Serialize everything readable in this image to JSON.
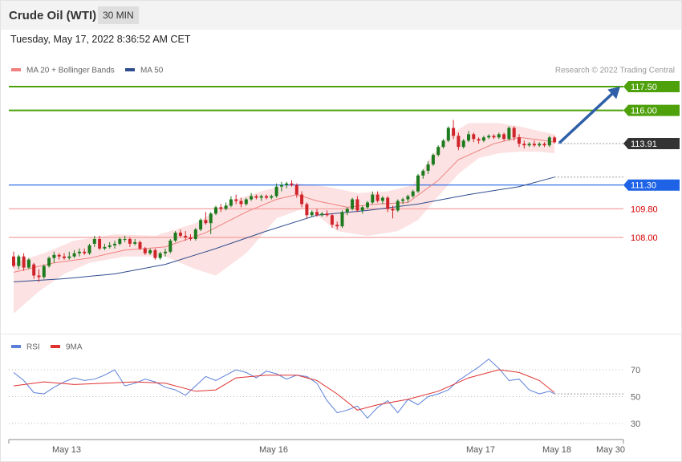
{
  "header": {
    "title": "Crude Oil (WTI)",
    "interval": "30 MIN"
  },
  "datetime": "Tuesday, May 17, 2022 8:36:52 AM CET",
  "legend": {
    "ma20_label": "MA 20 + Bollinger Bands",
    "ma50_label": "MA 50",
    "credit": "Research © 2022 Trading Central",
    "rsi_label": "RSI",
    "rsi_ma_label": "9MA"
  },
  "colors": {
    "up_candle": "#1e7a1e",
    "down_candle": "#d0242b",
    "bollinger_fill": "#fbd5d5",
    "ma20": "#f08080",
    "ma50": "#2f4d8e",
    "resistance": "#4ea10a",
    "pivot": "#1e63e6",
    "support": "#f4a0a0",
    "support_text": "#d40000",
    "current": "#333333",
    "arrow": "#2e5fa8",
    "rsi": "#5b7fd8",
    "rsi_ma": "#e03030"
  },
  "chart_data": [
    {
      "type": "candlestick",
      "title": "Crude Oil (WTI)",
      "interval": "30 MIN",
      "y_axis_labels": [
        {
          "value": 117.5,
          "label": "117.50",
          "kind": "resistance"
        },
        {
          "value": 116.0,
          "label": "116.00",
          "kind": "resistance"
        },
        {
          "value": 113.91,
          "label": "113.91",
          "kind": "current"
        },
        {
          "value": 111.3,
          "label": "111.30",
          "kind": "pivot"
        },
        {
          "value": 109.8,
          "label": "109.80",
          "kind": "support"
        },
        {
          "value": 108.0,
          "label": "108.00",
          "kind": "support"
        }
      ],
      "x_tick_labels": [
        "May 13",
        "May 16",
        "May 17",
        "May 18",
        "May 30"
      ],
      "ylim": [
        101.4,
        118.6
      ],
      "candles": [
        [
          106.8,
          107.1,
          106.1,
          106.2
        ],
        [
          106.2,
          106.9,
          106.0,
          106.8
        ],
        [
          106.8,
          107.0,
          105.9,
          106.1
        ],
        [
          106.1,
          106.7,
          106.0,
          106.6
        ],
        [
          106.3,
          106.4,
          105.4,
          105.6
        ],
        [
          105.6,
          106.0,
          105.2,
          105.5
        ],
        [
          105.5,
          106.3,
          105.4,
          106.2
        ],
        [
          106.2,
          106.8,
          106.1,
          106.7
        ],
        [
          106.7,
          107.1,
          106.4,
          106.9
        ],
        [
          106.9,
          107.0,
          106.6,
          106.8
        ],
        [
          106.8,
          107.0,
          106.6,
          106.7
        ],
        [
          106.7,
          107.1,
          106.6,
          106.8
        ],
        [
          106.8,
          107.2,
          106.7,
          107.0
        ],
        [
          107.0,
          107.3,
          106.8,
          107.1
        ],
        [
          107.1,
          107.3,
          106.9,
          107.0
        ],
        [
          107.0,
          107.6,
          106.9,
          107.5
        ],
        [
          107.6,
          108.1,
          107.4,
          107.9
        ],
        [
          107.9,
          108.1,
          107.2,
          107.3
        ],
        [
          107.3,
          107.6,
          107.2,
          107.4
        ],
        [
          107.4,
          107.7,
          107.3,
          107.5
        ],
        [
          107.5,
          107.8,
          107.3,
          107.6
        ],
        [
          107.6,
          108.0,
          107.5,
          107.9
        ],
        [
          107.9,
          108.1,
          107.7,
          107.9
        ],
        [
          107.9,
          108.0,
          107.4,
          107.6
        ],
        [
          107.6,
          107.9,
          107.5,
          107.7
        ],
        [
          107.7,
          107.8,
          107.2,
          107.3
        ],
        [
          107.3,
          107.4,
          106.9,
          107.0
        ],
        [
          107.0,
          107.3,
          106.9,
          107.2
        ],
        [
          107.2,
          107.3,
          106.6,
          106.7
        ],
        [
          106.7,
          107.1,
          106.6,
          107.0
        ],
        [
          107.0,
          107.3,
          106.8,
          107.1
        ],
        [
          107.1,
          107.9,
          107.0,
          107.8
        ],
        [
          107.8,
          108.4,
          107.7,
          108.3
        ],
        [
          108.3,
          108.5,
          108.0,
          108.1
        ],
        [
          108.1,
          108.4,
          107.8,
          108.0
        ],
        [
          108.0,
          108.2,
          107.8,
          107.9
        ],
        [
          107.9,
          108.6,
          107.8,
          108.5
        ],
        [
          108.5,
          109.2,
          108.4,
          109.1
        ],
        [
          109.1,
          109.6,
          108.8,
          108.9
        ],
        [
          108.9,
          109.6,
          108.2,
          109.5
        ],
        [
          109.5,
          110.0,
          109.4,
          109.9
        ],
        [
          109.9,
          110.1,
          109.6,
          109.8
        ],
        [
          109.8,
          110.2,
          109.7,
          110.0
        ],
        [
          110.0,
          110.6,
          109.9,
          110.4
        ],
        [
          110.4,
          110.7,
          110.1,
          110.3
        ],
        [
          110.3,
          110.5,
          109.9,
          110.1
        ],
        [
          110.1,
          110.5,
          110.0,
          110.4
        ],
        [
          110.4,
          110.8,
          110.3,
          110.6
        ],
        [
          110.6,
          110.7,
          110.4,
          110.5
        ],
        [
          110.5,
          110.7,
          110.3,
          110.6
        ],
        [
          110.6,
          110.7,
          110.4,
          110.5
        ],
        [
          110.5,
          110.7,
          110.4,
          110.6
        ],
        [
          110.6,
          111.4,
          110.5,
          111.2
        ],
        [
          111.2,
          111.5,
          110.9,
          111.3
        ],
        [
          111.3,
          111.5,
          111.1,
          111.4
        ],
        [
          111.4,
          111.6,
          111.2,
          111.3
        ],
        [
          111.3,
          111.4,
          110.5,
          110.7
        ],
        [
          110.7,
          110.9,
          109.9,
          110.1
        ],
        [
          110.1,
          110.2,
          109.2,
          109.4
        ],
        [
          109.4,
          109.7,
          109.3,
          109.6
        ],
        [
          109.6,
          109.8,
          109.3,
          109.4
        ],
        [
          109.4,
          109.6,
          109.3,
          109.5
        ],
        [
          109.5,
          109.7,
          109.3,
          109.4
        ],
        [
          109.4,
          109.5,
          108.6,
          108.8
        ],
        [
          108.8,
          109.0,
          108.5,
          108.7
        ],
        [
          108.7,
          109.7,
          108.6,
          109.6
        ],
        [
          109.6,
          109.9,
          109.4,
          109.8
        ],
        [
          109.8,
          110.5,
          109.7,
          110.4
        ],
        [
          110.4,
          110.6,
          109.6,
          109.7
        ],
        [
          109.7,
          110.0,
          109.5,
          109.9
        ],
        [
          109.9,
          110.3,
          109.8,
          110.2
        ],
        [
          110.2,
          110.9,
          110.1,
          110.7
        ],
        [
          110.7,
          110.9,
          110.2,
          110.3
        ],
        [
          110.3,
          110.6,
          110.1,
          110.5
        ],
        [
          110.5,
          110.6,
          109.6,
          109.8
        ],
        [
          109.8,
          110.0,
          109.2,
          109.7
        ],
        [
          109.7,
          110.4,
          109.6,
          110.3
        ],
        [
          110.3,
          110.5,
          110.1,
          110.4
        ],
        [
          110.4,
          110.7,
          110.2,
          110.6
        ],
        [
          110.6,
          111.0,
          110.5,
          110.9
        ],
        [
          110.9,
          112.0,
          110.8,
          111.9
        ],
        [
          111.9,
          112.3,
          111.7,
          112.2
        ],
        [
          112.2,
          112.8,
          112.0,
          112.6
        ],
        [
          112.6,
          113.3,
          112.5,
          113.2
        ],
        [
          113.2,
          113.8,
          113.1,
          113.7
        ],
        [
          113.7,
          114.2,
          113.6,
          114.1
        ],
        [
          114.1,
          115.0,
          114.0,
          114.9
        ],
        [
          114.9,
          115.4,
          114.2,
          114.4
        ],
        [
          114.4,
          114.6,
          113.5,
          113.7
        ],
        [
          113.7,
          114.2,
          113.6,
          114.1
        ],
        [
          114.1,
          114.7,
          114.0,
          114.5
        ],
        [
          114.5,
          114.6,
          114.0,
          114.2
        ],
        [
          114.2,
          114.3,
          113.9,
          114.1
        ],
        [
          114.1,
          114.4,
          114.0,
          114.3
        ],
        [
          114.3,
          114.5,
          114.2,
          114.4
        ],
        [
          114.4,
          114.5,
          114.2,
          114.3
        ],
        [
          114.3,
          114.6,
          114.2,
          114.5
        ],
        [
          114.5,
          114.6,
          114.1,
          114.2
        ],
        [
          114.2,
          115.0,
          114.1,
          114.9
        ],
        [
          114.9,
          115.0,
          114.1,
          114.3
        ],
        [
          114.3,
          114.5,
          113.7,
          113.9
        ],
        [
          113.9,
          114.1,
          113.6,
          113.8
        ],
        [
          113.8,
          114.0,
          113.7,
          113.9
        ],
        [
          113.9,
          114.1,
          113.7,
          113.8
        ],
        [
          113.8,
          114.0,
          113.7,
          113.9
        ],
        [
          113.9,
          114.0,
          113.7,
          113.8
        ],
        [
          113.8,
          114.4,
          113.7,
          114.3
        ],
        [
          114.3,
          114.4,
          113.9,
          114.0
        ]
      ],
      "ma20": [
        [
          0,
          105.8
        ],
        [
          8,
          106.4
        ],
        [
          15,
          106.7
        ],
        [
          22,
          107.2
        ],
        [
          30,
          107.4
        ],
        [
          38,
          108.3
        ],
        [
          46,
          109.6
        ],
        [
          52,
          110.4
        ],
        [
          56,
          110.7
        ],
        [
          60,
          110.3
        ],
        [
          66,
          109.9
        ],
        [
          72,
          110.1
        ],
        [
          78,
          110.2
        ],
        [
          84,
          111.6
        ],
        [
          88,
          112.9
        ],
        [
          95,
          113.9
        ],
        [
          100,
          114.3
        ],
        [
          105,
          114.1
        ],
        [
          107,
          114.0
        ]
      ],
      "bollinger_upper": [
        [
          0,
          106.4
        ],
        [
          6,
          107.0
        ],
        [
          12,
          107.8
        ],
        [
          20,
          108.2
        ],
        [
          28,
          108.1
        ],
        [
          36,
          108.9
        ],
        [
          44,
          110.4
        ],
        [
          50,
          111.0
        ],
        [
          56,
          111.4
        ],
        [
          62,
          111.2
        ],
        [
          68,
          110.8
        ],
        [
          74,
          110.9
        ],
        [
          79,
          111.3
        ],
        [
          82,
          112.8
        ],
        [
          86,
          114.4
        ],
        [
          90,
          115.2
        ],
        [
          96,
          115.2
        ],
        [
          100,
          115.0
        ],
        [
          104,
          114.7
        ],
        [
          107,
          114.5
        ]
      ],
      "bollinger_lower": [
        [
          0,
          103.2
        ],
        [
          5,
          104.6
        ],
        [
          10,
          105.7
        ],
        [
          15,
          106.4
        ],
        [
          22,
          106.8
        ],
        [
          30,
          106.8
        ],
        [
          36,
          106.0
        ],
        [
          40,
          105.6
        ],
        [
          46,
          107.0
        ],
        [
          52,
          109.2
        ],
        [
          58,
          109.9
        ],
        [
          64,
          108.4
        ],
        [
          70,
          108.1
        ],
        [
          76,
          108.4
        ],
        [
          80,
          109.1
        ],
        [
          84,
          110.6
        ],
        [
          88,
          112.0
        ],
        [
          92,
          113.0
        ],
        [
          96,
          113.3
        ],
        [
          100,
          113.4
        ],
        [
          104,
          113.4
        ],
        [
          107,
          113.3
        ]
      ],
      "ma50": [
        [
          0,
          105.2
        ],
        [
          10,
          105.4
        ],
        [
          20,
          105.7
        ],
        [
          30,
          106.3
        ],
        [
          40,
          107.3
        ],
        [
          50,
          108.4
        ],
        [
          60,
          109.4
        ],
        [
          70,
          109.7
        ],
        [
          80,
          110.1
        ],
        [
          90,
          110.7
        ],
        [
          100,
          111.2
        ],
        [
          107,
          111.8
        ]
      ]
    },
    {
      "type": "line",
      "title": "RSI",
      "y_tick_labels": [
        "70",
        "50",
        "30"
      ],
      "guides": [
        70,
        50,
        30
      ],
      "ylim": [
        20,
        80
      ],
      "series": [
        {
          "name": "RSI",
          "x": [
            0,
            2,
            4,
            6,
            8,
            10,
            12,
            14,
            16,
            18,
            20,
            22,
            24,
            26,
            28,
            30,
            32,
            34,
            36,
            38,
            40,
            42,
            44,
            46,
            48,
            50,
            52,
            54,
            56,
            58,
            60,
            62,
            64,
            66,
            68,
            70,
            72,
            74,
            76,
            78,
            80,
            82,
            84,
            86,
            88,
            90,
            92,
            94,
            96,
            98,
            100,
            102,
            104,
            106,
            107
          ],
          "values": [
            68,
            62,
            53,
            52,
            57,
            61,
            64,
            62,
            63,
            66,
            70,
            58,
            60,
            63,
            61,
            57,
            55,
            51,
            58,
            65,
            62,
            66,
            70,
            68,
            64,
            69,
            67,
            63,
            66,
            65,
            60,
            47,
            38,
            40,
            43,
            34,
            42,
            47,
            38,
            48,
            44,
            50,
            52,
            55,
            62,
            67,
            72,
            78,
            71,
            62,
            63,
            55,
            52,
            54,
            52
          ]
        },
        {
          "name": "9MA",
          "x": [
            0,
            6,
            12,
            18,
            24,
            30,
            36,
            40,
            44,
            50,
            56,
            60,
            64,
            68,
            72,
            78,
            84,
            90,
            96,
            100,
            104,
            107
          ],
          "values": [
            58,
            61,
            59,
            60,
            61,
            60,
            54,
            55,
            64,
            66,
            66,
            62,
            52,
            40,
            44,
            48,
            54,
            64,
            70,
            68,
            62,
            53
          ]
        }
      ]
    }
  ]
}
